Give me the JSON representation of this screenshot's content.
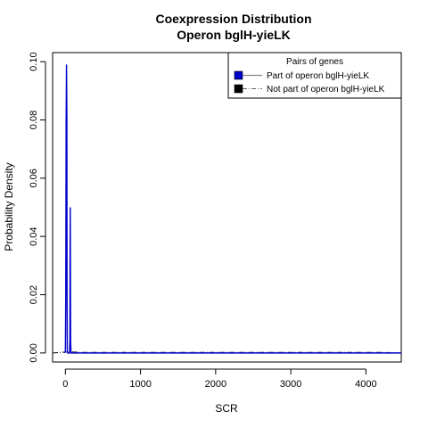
{
  "chart_data": {
    "type": "line",
    "title_lines": [
      "Coexpression Distribution",
      "Operon bglH-yieLK"
    ],
    "xlabel": "SCR",
    "ylabel": "Probability Density",
    "xlim": [
      -170,
      4470
    ],
    "ylim": [
      -0.0031,
      0.1031
    ],
    "x_ticks": [
      0,
      1000,
      2000,
      3000,
      4000
    ],
    "y_ticks": [
      0.0,
      0.02,
      0.04,
      0.06,
      0.08,
      0.1
    ],
    "y_tick_labels": [
      "0.00",
      "0.02",
      "0.04",
      "0.06",
      "0.08",
      "0.10"
    ],
    "grid": false,
    "legend": {
      "title": "Pairs of genes",
      "placement": "top-right",
      "entries": [
        {
          "label": "Part of operon bglH-yieLK",
          "color": "#0000cc",
          "line": "solid"
        },
        {
          "label": "Not part of operon bglH-yieLK",
          "color": "#000000",
          "line": "dashdot"
        }
      ]
    },
    "series": [
      {
        "name": "Part of operon bglH-yieLK",
        "color": "#0000cc",
        "x": [
          -15,
          0,
          5,
          10,
          15,
          20,
          22,
          25,
          30,
          35,
          40,
          45,
          50,
          55,
          60,
          62,
          65,
          67,
          70,
          75,
          80,
          4470
        ],
        "y": [
          0,
          0.0005,
          0.02,
          0.08,
          0.099,
          0.08,
          0.02,
          0.001,
          0,
          0,
          0,
          0,
          0,
          0,
          0.004,
          0.03,
          0.05,
          0.03,
          0.004,
          0,
          0,
          0
        ]
      },
      {
        "name": "Not part of operon bglH-yieLK",
        "color": "#000000",
        "x": [
          -170,
          0,
          50,
          200,
          1000,
          2000,
          3000,
          4000,
          4200,
          4470
        ],
        "y": [
          0,
          0.0003,
          0.0004,
          0.0002,
          0.0002,
          0.0002,
          0.0002,
          0.0002,
          0.0002,
          0
        ]
      }
    ]
  }
}
